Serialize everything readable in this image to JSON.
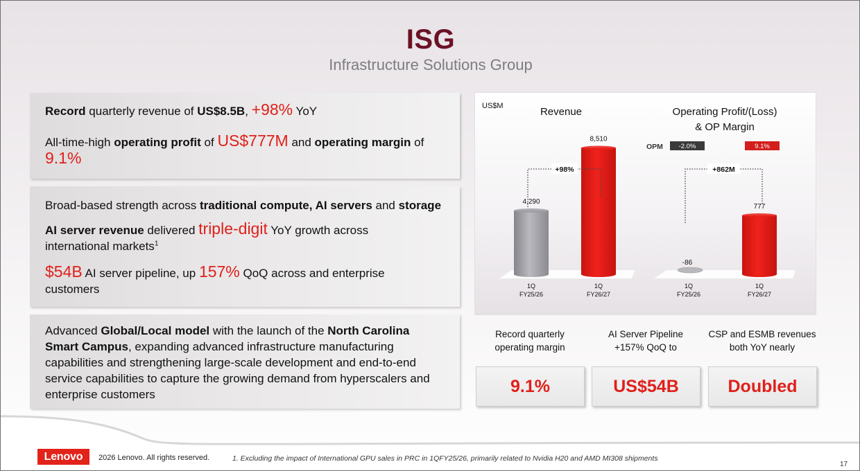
{
  "header": {
    "title": "ISG",
    "subtitle": "Infrastructure Solutions Group"
  },
  "panel1": {
    "line1": {
      "a": "Record",
      "b": " quarterly revenue of ",
      "c": "US$8.5B",
      "d": ", ",
      "e": "+98%",
      "f": " YoY"
    },
    "line2": {
      "a": "All-time-high ",
      "b": "operating profit",
      "c": " of ",
      "d": "US$777M",
      "e": " and ",
      "f": "operating margin",
      "g": " of",
      "h": "9.1%"
    }
  },
  "panel2": {
    "line1": {
      "a": "Broad-based strength across ",
      "b": "traditional compute, AI servers",
      "c": " and ",
      "d": "storage"
    },
    "line2": {
      "a": "AI server revenue",
      "b": " delivered ",
      "c": "triple-digit",
      "d": " YoY growth across",
      "e": "international markets",
      "f": "1"
    },
    "line3": {
      "a": "$54B",
      "b": " AI server pipeline, up ",
      "c": "157%",
      "d": " QoQ across  and enterprise",
      "e": "customers"
    }
  },
  "panel3": {
    "a": "Advanced ",
    "b": "Global/Local model",
    "c": " with the launch of the ",
    "d": "North Carolina",
    "e": "Smart Campus",
    "f": ", expanding advanced infrastructure manufacturing",
    "g": "capabilities and strengthening large-scale development and end-to-end",
    "h": "service capabilities to capture the growing demand from hyperscalers and",
    "i": "enterprise customers"
  },
  "chart_data": [
    {
      "type": "bar",
      "title": "Revenue",
      "unit": "US$M",
      "categories": [
        "1Q FY25/26",
        "1Q FY26/27"
      ],
      "category_lines": [
        [
          "1Q",
          "FY25/26"
        ],
        [
          "1Q",
          "FY26/27"
        ]
      ],
      "values": [
        4290,
        8510
      ],
      "value_labels": [
        "4,290",
        "8,510"
      ],
      "bar_colors": [
        "#9e9ea4",
        "#e8201b"
      ],
      "annotation": "+98%"
    },
    {
      "type": "bar",
      "title_lines": [
        "Operating Profit/(Loss)",
        "& OP Margin"
      ],
      "categories": [
        "1Q FY25/26",
        "1Q FY26/27"
      ],
      "category_lines": [
        [
          "1Q",
          "FY25/26"
        ],
        [
          "1Q",
          "FY26/27"
        ]
      ],
      "values": [
        -86,
        777
      ],
      "value_labels": [
        "-86",
        "777"
      ],
      "bar_colors": [
        "#b3b3b8",
        "#e8201b"
      ],
      "annotation": "+862M",
      "opm_label": "OPM",
      "opm_values": [
        "-2.0%",
        "9.1%"
      ],
      "opm_colors": [
        "#3a3a3a",
        "#d21f1b"
      ]
    }
  ],
  "stats": [
    {
      "label_lines": [
        "Record quarterly",
        "operating margin"
      ],
      "value": "9.1%"
    },
    {
      "label_lines": [
        "AI Server Pipeline",
        "+157% QoQ to"
      ],
      "value": "US$54B"
    },
    {
      "label_lines": [
        "CSP and ESMB revenues",
        "both YoY nearly"
      ],
      "value": "Doubled"
    }
  ],
  "footer": {
    "logo": "Lenovo",
    "copyright": "2026 Lenovo. All rights reserved.",
    "footnote": "1. Excluding the impact of International GPU sales in PRC in 1QFY25/26, primarily related to Nvidia H20 and AMD MI308 shipments",
    "page_number": "17"
  }
}
